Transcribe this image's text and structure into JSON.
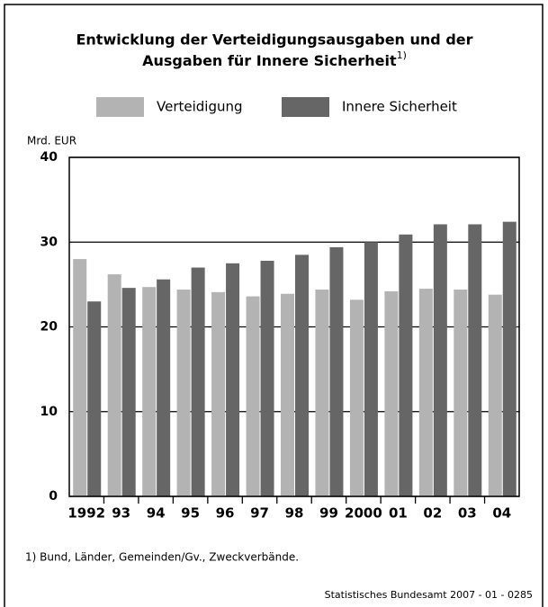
{
  "chart_data": {
    "type": "bar",
    "title": [
      "Entwicklung der Verteidigungsausgaben und der",
      "Ausgaben für Innere Sicherheit"
    ],
    "title_note": "1)",
    "y_label": "Mrd. EUR",
    "categories": [
      "1992",
      "93",
      "94",
      "95",
      "96",
      "97",
      "98",
      "99",
      "2000",
      "01",
      "02",
      "03",
      "04"
    ],
    "series": [
      {
        "name": "Verteidigung",
        "color": "#b3b3b3",
        "values": [
          28.0,
          26.2,
          24.7,
          24.4,
          24.1,
          23.6,
          23.9,
          24.4,
          23.2,
          24.2,
          24.5,
          24.4,
          23.8
        ]
      },
      {
        "name": "Innere Sicherheit",
        "color": "#666666",
        "values": [
          23.0,
          24.6,
          25.6,
          27.0,
          27.5,
          27.8,
          28.5,
          29.4,
          30.0,
          30.9,
          32.1,
          32.1,
          32.4
        ]
      }
    ],
    "ylim": [
      0,
      40
    ],
    "yticks": [
      0,
      10,
      20,
      30,
      40
    ],
    "grid": true,
    "footnote": "1) Bund, Länder, Gemeinden/Gv., Zweckverbände.",
    "source": "Statistisches Bundesamt 2007 - 01 - 0285"
  }
}
